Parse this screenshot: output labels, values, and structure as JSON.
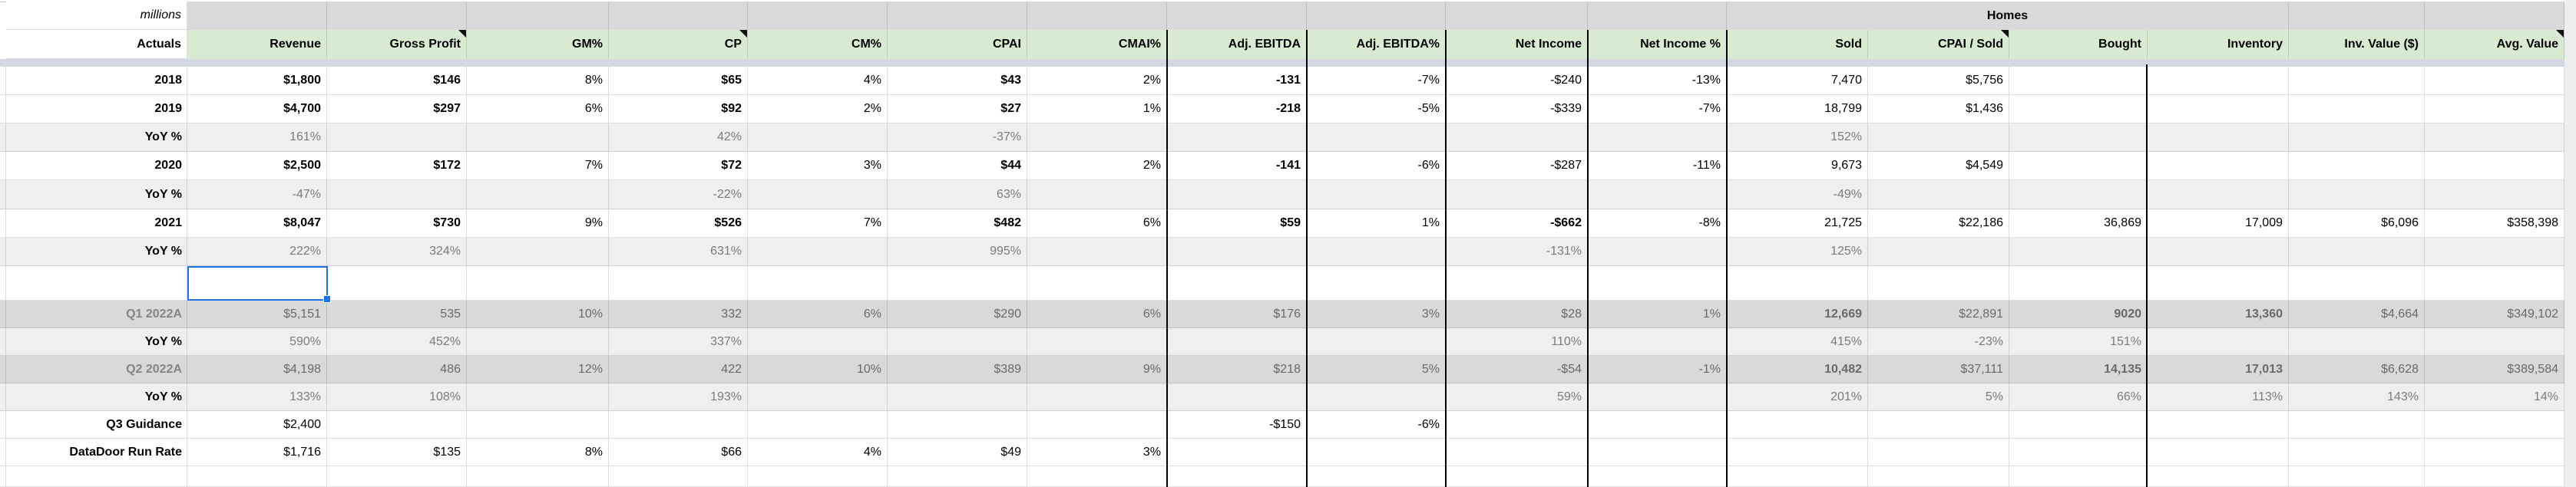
{
  "sheet": {
    "unit_note": "millions",
    "corner_label": "Actuals",
    "group_header": "Homes",
    "columns": [
      {
        "id": "revenue",
        "label": "Revenue",
        "note": false
      },
      {
        "id": "gross_profit",
        "label": "Gross Profit",
        "note": true
      },
      {
        "id": "gm_pct",
        "label": "GM%",
        "note": false
      },
      {
        "id": "cp",
        "label": "CP",
        "note": true
      },
      {
        "id": "cm_pct",
        "label": "CM%",
        "note": false
      },
      {
        "id": "cpai",
        "label": "CPAI",
        "note": false
      },
      {
        "id": "cmai_pct",
        "label": "CMAI%",
        "note": false
      },
      {
        "id": "adj_ebitda",
        "label": "Adj. EBITDA",
        "note": false
      },
      {
        "id": "adj_ebitda_pct",
        "label": "Adj. EBITDA%",
        "note": false
      },
      {
        "id": "net_income",
        "label": "Net Income",
        "note": false
      },
      {
        "id": "net_income_pct",
        "label": "Net Income %",
        "note": false
      },
      {
        "id": "sold",
        "label": "Sold",
        "note": false
      },
      {
        "id": "cpai_sold",
        "label": "CPAI / Sold",
        "note": true
      },
      {
        "id": "bought",
        "label": "Bought",
        "note": false
      },
      {
        "id": "inventory",
        "label": "Inventory",
        "note": false
      },
      {
        "id": "inv_value",
        "label": "Inv. Value ($)",
        "note": false
      },
      {
        "id": "avg_value",
        "label": "Avg. Value",
        "note": true
      }
    ],
    "rows": [
      {
        "label": "2018",
        "type": "year",
        "cells": [
          {
            "t": "$1,800",
            "b": 1
          },
          {
            "t": "$146",
            "b": 1
          },
          "8%",
          {
            "t": "$65",
            "b": 1
          },
          "4%",
          {
            "t": "$43",
            "b": 1
          },
          "2%",
          {
            "t": "-131",
            "b": 1
          },
          "-7%",
          "-$240",
          "-13%",
          "7,470",
          "$5,756",
          "",
          "",
          "",
          ""
        ]
      },
      {
        "label": "2019",
        "type": "year",
        "cells": [
          {
            "t": "$4,700",
            "b": 1
          },
          {
            "t": "$297",
            "b": 1
          },
          "6%",
          {
            "t": "$92",
            "b": 1
          },
          "2%",
          {
            "t": "$27",
            "b": 1
          },
          "1%",
          {
            "t": "-218",
            "b": 1
          },
          "-5%",
          "-$339",
          "-7%",
          "18,799",
          "$1,436",
          "",
          "",
          "",
          ""
        ]
      },
      {
        "label": "YoY %",
        "type": "yoy",
        "cells": [
          "161%",
          "",
          "",
          "42%",
          "",
          "-37%",
          "",
          "",
          "",
          "",
          "",
          "152%",
          "",
          "",
          "",
          "",
          ""
        ]
      },
      {
        "label": "2020",
        "type": "year",
        "cells": [
          {
            "t": "$2,500",
            "b": 1
          },
          {
            "t": "$172",
            "b": 1
          },
          "7%",
          {
            "t": "$72",
            "b": 1
          },
          "3%",
          {
            "t": "$44",
            "b": 1
          },
          "2%",
          {
            "t": "-141",
            "b": 1
          },
          "-6%",
          "-$287",
          "-11%",
          "9,673",
          "$4,549",
          "",
          "",
          "",
          ""
        ]
      },
      {
        "label": "YoY %",
        "type": "yoy",
        "cells": [
          "-47%",
          "",
          "",
          "-22%",
          "",
          "63%",
          "",
          "",
          "",
          "",
          "",
          "-49%",
          "",
          "",
          "",
          "",
          ""
        ]
      },
      {
        "label": "2021",
        "type": "year",
        "cells": [
          {
            "t": "$8,047",
            "b": 1
          },
          {
            "t": "$730",
            "b": 1
          },
          "9%",
          {
            "t": "$526",
            "b": 1
          },
          "7%",
          {
            "t": "$482",
            "b": 1
          },
          "6%",
          {
            "t": "$59",
            "b": 1
          },
          "1%",
          {
            "t": "-$662",
            "b": 1
          },
          "-8%",
          "21,725",
          "$22,186",
          "36,869",
          "17,009",
          "$6,096",
          "$358,398"
        ]
      },
      {
        "label": "YoY %",
        "type": "yoy",
        "cells": [
          "222%",
          "324%",
          "",
          "631%",
          "",
          "995%",
          "",
          "",
          "",
          "-131%",
          "",
          "125%",
          "",
          "",
          "",
          "",
          ""
        ]
      },
      {
        "label": "",
        "type": "sel",
        "cells": [
          "",
          "",
          "",
          "",
          "",
          "",
          "",
          "",
          "",
          "",
          "",
          "",
          "",
          "",
          "",
          "",
          ""
        ]
      },
      {
        "label": "Q1 2022A",
        "type": "q",
        "cells": [
          "$5,151",
          "535",
          "10%",
          "332",
          "6%",
          "$290",
          "6%",
          "$176",
          "3%",
          "$28",
          "1%",
          {
            "t": "12,669",
            "b": 1
          },
          "$22,891",
          {
            "t": "9020",
            "b": 1
          },
          {
            "t": "13,360",
            "b": 1
          },
          "$4,664",
          "$349,102"
        ]
      },
      {
        "label": "YoY %",
        "type": "yoy",
        "cells": [
          "590%",
          "452%",
          "",
          "337%",
          "",
          "",
          "",
          "",
          "",
          "110%",
          "",
          "415%",
          "-23%",
          "151%",
          "",
          "",
          ""
        ]
      },
      {
        "label": "Q2 2022A",
        "type": "q",
        "cells": [
          "$4,198",
          "486",
          "12%",
          "422",
          "10%",
          "$389",
          "9%",
          "$218",
          "5%",
          "-$54",
          "-1%",
          {
            "t": "10,482",
            "b": 1
          },
          "$37,111",
          {
            "t": "14,135",
            "b": 1
          },
          {
            "t": "17,013",
            "b": 1
          },
          "$6,628",
          "$389,584"
        ]
      },
      {
        "label": "YoY %",
        "type": "yoy",
        "cells": [
          "133%",
          "108%",
          "",
          "193%",
          "",
          "",
          "",
          "",
          "",
          "59%",
          "",
          "201%",
          "5%",
          "66%",
          "113%",
          "143%",
          "14%"
        ]
      },
      {
        "label": "Q3 Guidance",
        "type": "plain",
        "cells": [
          "$2,400",
          "",
          "",
          "",
          "",
          "",
          "",
          "-$150",
          "-6%",
          "",
          "",
          "",
          "",
          "",
          "",
          "",
          ""
        ]
      },
      {
        "label": "DataDoor Run Rate",
        "type": "plain",
        "cells": [
          "$1,716",
          "$135",
          "8%",
          "$66",
          "4%",
          "$49",
          "3%",
          "",
          "",
          "",
          "",
          "",
          "",
          "",
          "",
          "",
          ""
        ]
      },
      {
        "label": "",
        "type": "blank",
        "cells": [
          "",
          "",
          "",
          "",
          "",
          "",
          "",
          "",
          "",
          "",
          "",
          "",
          "",
          "",
          "",
          "",
          ""
        ]
      }
    ]
  },
  "selection": {
    "active_column": "Revenue",
    "active_row": "empty row below YoY % (2021)"
  },
  "colors": {
    "header_green": "#d9ead3",
    "band_gray": "#d9d9d9",
    "yoy_gray": "#efefef",
    "q_row_gray": "#d9d9d9",
    "selection_blue": "#1a73e8",
    "thick_border": "#000000"
  }
}
